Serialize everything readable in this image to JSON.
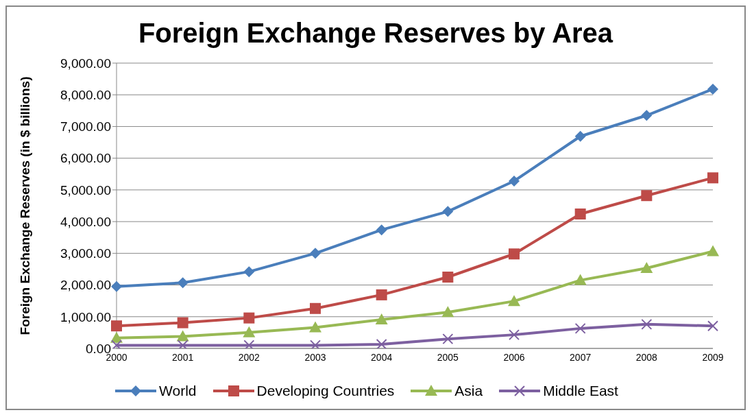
{
  "chart_data": {
    "type": "line",
    "title": "Foreign Exchange Reserves by Area",
    "ylabel": "Foreign Exchange Reserves (in $ billions)",
    "categories": [
      "2000",
      "2001",
      "2002",
      "2003",
      "2004",
      "2005",
      "2006",
      "2007",
      "2008",
      "2009"
    ],
    "series": [
      {
        "name": "World",
        "color": "#4a7ebb",
        "marker": "diamond",
        "values": [
          1950,
          2070,
          2420,
          3000,
          3740,
          4320,
          5280,
          6690,
          7350,
          8180
        ]
      },
      {
        "name": "Developing Countries",
        "color": "#be4b48",
        "marker": "square",
        "values": [
          710,
          810,
          960,
          1260,
          1690,
          2250,
          2980,
          4240,
          4820,
          5380
        ]
      },
      {
        "name": "Asia",
        "color": "#98b954",
        "marker": "triangle",
        "values": [
          330,
          380,
          505,
          660,
          910,
          1140,
          1490,
          2150,
          2530,
          3060
        ]
      },
      {
        "name": "Middle East",
        "color": "#7d60a0",
        "marker": "cross",
        "values": [
          100,
          100,
          100,
          100,
          130,
          300,
          430,
          630,
          760,
          710
        ]
      }
    ],
    "ylim": [
      0,
      9000
    ],
    "yticks": [
      {
        "value": 0,
        "label": "0.00"
      },
      {
        "value": 1000,
        "label": "1,000.00"
      },
      {
        "value": 2000,
        "label": "2,000.00"
      },
      {
        "value": 3000,
        "label": "3,000.00"
      },
      {
        "value": 4000,
        "label": "4,000.00"
      },
      {
        "value": 5000,
        "label": "5,000.00"
      },
      {
        "value": 6000,
        "label": "6,000.00"
      },
      {
        "value": 7000,
        "label": "7,000.00"
      },
      {
        "value": 8000,
        "label": "8,000.00"
      },
      {
        "value": 9000,
        "label": "9,000.00"
      }
    ],
    "grid": "y",
    "legend": "bottom"
  }
}
